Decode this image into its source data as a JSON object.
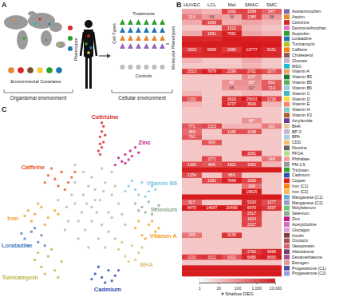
{
  "panel_a": {
    "letter": "A",
    "environmental_covariates": "Environmental Covariates",
    "phenotypes": "Phenotypes",
    "organismal_environment": "Organismal environment",
    "cellular_environment": "Cellular environment",
    "cell_types": "Cell Types",
    "treatments": "Treatments",
    "controls": "Controls",
    "molecular_phenotypes": "Molecular Phenotypes"
  },
  "chart_data": [
    {
      "type": "heatmap",
      "title": "B",
      "columns": [
        "HUVEC",
        "LCL",
        "Mel",
        "SMAC",
        "SMC"
      ],
      "rows": [
        "Acetaminophen",
        "Aspirin",
        "Cetirizine",
        "Dextromethorphan",
        "Ibuprofen",
        "Loratadine",
        "Tunicamycin",
        "Caffeine",
        "Cholesterol",
        "Glucose",
        "MSG",
        "Vitamin A",
        "Vitamin B3",
        "Vitamin B5",
        "Vitamin B6",
        "Vitamin C",
        "Vitamin D",
        "Vitamin E",
        "Vitamin H",
        "Vitamin K3",
        "Acrylamide",
        "BHA",
        "BP-3",
        "BPA",
        "CDD",
        "Nicotine",
        "PFOA",
        "Phthalate",
        "PM 2.5",
        "Triclosan",
        "Cadmium",
        "Copper",
        "Iron (C1)",
        "Iron (C2)",
        "Manganese (C1)",
        "Manganese (C2)",
        "Molybdenum",
        "Selenium",
        "Zinc",
        "Acetylcholine",
        "Glucagon",
        "Insulin",
        "Oxytocin",
        "Vasopressin",
        "Aldosterone",
        "Dexamethasone",
        "Estrogen",
        "Progesterone (C1)",
        "Progesterone (C2)"
      ],
      "colors": [
        "#7b68ae",
        "#e6872d",
        "#d62728",
        "#e377c2",
        "#2ca02c",
        "#1f77b4",
        "#bcbd22",
        "#ff7f0e",
        "#8c564b",
        "#c5b0d5",
        "#17becf",
        "#f4a259",
        "#1b7837",
        "#5aae61",
        "#9ecae1",
        "#41b6c4",
        "#fdd835",
        "#fb8072",
        "#80cdc1",
        "#b15928",
        "#6a3d9a",
        "#e7cb94",
        "#cab2d6",
        "#a6cee3",
        "#fdbf6f",
        "#666666",
        "#b2df8a",
        "#fb9a99",
        "#999999",
        "#33a02c",
        "#3050b0",
        "#e31a1c",
        "#ff7f00",
        "#ffb84d",
        "#6baed6",
        "#9e9ac8",
        "#74c476",
        "#8fae8f",
        "#c71585",
        "#ce6dbd",
        "#de9ed6",
        "#843c39",
        "#ad494a",
        "#d6616b",
        "#7b4173",
        "#a55194",
        "#e7969c",
        "#5254a3",
        "#9c9ede"
      ],
      "values": [
        [
          40,
          20,
          1692,
          1569,
          547
        ],
        [
          214,
          54,
          36,
          1385,
          58
        ],
        [
          30,
          1669,
          25,
          40,
          20
        ],
        [
          10,
          10,
          1312,
          20,
          10
        ],
        [
          30,
          1891,
          7561,
          40,
          20
        ],
        [
          6000,
          5000,
          9000,
          8000,
          7000
        ],
        [
          9000,
          9000,
          9000,
          12000,
          9000
        ],
        [
          2623,
          6909,
          2683,
          13777,
          5151
        ],
        [
          5000,
          6000,
          7000,
          9000,
          6000
        ],
        [
          20,
          10,
          10,
          30,
          10
        ],
        [
          10,
          10,
          10,
          20,
          10
        ],
        [
          2513,
          7679,
          2299,
          2701,
          1077
        ],
        [
          10,
          10,
          10,
          113,
          10
        ],
        [
          10,
          10,
          85,
          83,
          632
        ],
        [
          10,
          10,
          65,
          61,
          714
        ],
        [
          20,
          10,
          10,
          20,
          10
        ],
        [
          1332,
          10,
          3616,
          25693,
          1726
        ],
        [
          20,
          10,
          4737,
          3643,
          20
        ],
        [
          10,
          10,
          10,
          10,
          10
        ],
        [
          10,
          10,
          10,
          10,
          10
        ],
        [
          10,
          10,
          10,
          86,
          10
        ],
        [
          771,
          1515,
          20,
          20,
          192
        ],
        [
          369,
          10,
          1165,
          1038,
          10
        ],
        [
          792,
          10,
          10,
          10,
          10
        ],
        [
          10,
          909,
          10,
          10,
          10
        ],
        [
          10,
          10,
          10,
          10,
          10
        ],
        [
          10,
          10,
          10,
          3261,
          10
        ],
        [
          10,
          1571,
          10,
          10,
          248
        ],
        [
          1350,
          846,
          1901,
          1952,
          20
        ],
        [
          8000,
          9000,
          9000,
          9000,
          9000
        ],
        [
          1254,
          10,
          869,
          10,
          10
        ],
        [
          10,
          1582,
          7669,
          1926,
          10
        ],
        [
          10,
          10,
          10,
          268,
          10
        ],
        [
          10,
          10,
          10,
          16825,
          10
        ],
        [
          9000,
          9000,
          9000,
          9000,
          9000
        ],
        [
          617,
          10,
          10,
          5200,
          1277
        ],
        [
          8470,
          14687,
          20469,
          6470,
          3057
        ],
        [
          10,
          10,
          10,
          2517,
          10
        ],
        [
          10,
          10,
          10,
          1604,
          10
        ],
        [
          10,
          10,
          10,
          2027,
          10
        ],
        [
          10,
          10,
          10,
          10,
          10
        ],
        [
          249,
          10,
          3130,
          10,
          10
        ],
        [
          10,
          10,
          10,
          10,
          10
        ],
        [
          10,
          10,
          10,
          10,
          10
        ],
        [
          10,
          10,
          10,
          2762,
          6689
        ],
        [
          2231,
          3111,
          1002,
          6480,
          8660
        ],
        [
          10,
          10,
          10,
          10,
          10
        ],
        [
          9000,
          9000,
          9000,
          9000,
          9000
        ],
        [
          9000,
          9000,
          9000,
          9000,
          9000
        ]
      ],
      "value_labels": [
        [
          null,
          null,
          "1692",
          "1569",
          "547"
        ],
        [
          "214",
          "54",
          "36",
          "1385",
          "58"
        ],
        [
          null,
          "1669",
          null,
          null,
          null
        ],
        [
          null,
          null,
          "1312",
          null,
          null
        ],
        [
          null,
          "1891",
          "7561",
          null,
          null
        ],
        [
          null,
          null,
          null,
          null,
          null
        ],
        [
          null,
          null,
          null,
          null,
          null
        ],
        [
          "2623",
          "6909",
          "2683",
          "13777",
          "5151"
        ],
        [
          null,
          null,
          null,
          null,
          null
        ],
        [
          null,
          null,
          null,
          null,
          null
        ],
        [
          null,
          null,
          null,
          null,
          null
        ],
        [
          "2513",
          "7679",
          "2299",
          "2701",
          "1077"
        ],
        [
          null,
          null,
          null,
          "113*",
          null
        ],
        [
          null,
          null,
          "85",
          "83*",
          "632"
        ],
        [
          null,
          null,
          "65",
          "61*",
          "714"
        ],
        [
          null,
          null,
          null,
          null,
          null
        ],
        [
          "1332",
          null,
          "3616",
          "25693",
          "1726"
        ],
        [
          null,
          null,
          "4737",
          "3643",
          null
        ],
        [
          null,
          null,
          null,
          null,
          null
        ],
        [
          null,
          null,
          null,
          null,
          null
        ],
        [
          null,
          null,
          null,
          "86*",
          null
        ],
        [
          "771",
          "1515",
          null,
          null,
          "192"
        ],
        [
          "369",
          null,
          "1165",
          "1038",
          null
        ],
        [
          "792",
          null,
          null,
          null,
          null
        ],
        [
          null,
          "909",
          null,
          null,
          null
        ],
        [
          null,
          null,
          null,
          null,
          null
        ],
        [
          null,
          null,
          null,
          "3261",
          null
        ],
        [
          null,
          "1571",
          null,
          null,
          "248"
        ],
        [
          "1350",
          "846",
          "1901",
          "1952",
          null
        ],
        [
          null,
          null,
          null,
          null,
          null
        ],
        [
          "1254",
          null,
          "869",
          null,
          null
        ],
        [
          null,
          "1582",
          "7669",
          "1926",
          null
        ],
        [
          null,
          null,
          null,
          "268",
          null
        ],
        [
          null,
          null,
          null,
          "16825",
          null
        ],
        [
          null,
          null,
          null,
          null,
          null
        ],
        [
          "617",
          null,
          null,
          "5200",
          "1277"
        ],
        [
          "8470",
          "14687",
          "20469",
          "6470",
          "3057"
        ],
        [
          null,
          null,
          null,
          "2517",
          null
        ],
        [
          null,
          null,
          null,
          "1604",
          null
        ],
        [
          null,
          null,
          null,
          "2027",
          null
        ],
        [
          null,
          null,
          null,
          null,
          null
        ],
        [
          "249",
          null,
          "3130",
          null,
          null
        ],
        [
          null,
          null,
          null,
          null,
          null
        ],
        [
          null,
          null,
          null,
          null,
          null
        ],
        [
          null,
          null,
          null,
          "2762",
          "6689"
        ],
        [
          "2231",
          "3111",
          "1002",
          "6480",
          "8660"
        ],
        [
          null,
          null,
          null,
          null,
          null
        ],
        [
          null,
          null,
          null,
          null,
          null
        ],
        [
          null,
          null,
          null,
          null,
          null
        ]
      ],
      "data_labels": true,
      "colorbar": {
        "label": "# Shallow DEG",
        "log": true,
        "range": [
          1,
          10000
        ],
        "ticks": [
          1,
          10,
          100,
          {
            "value": 1000,
            "label": "1,000"
          },
          {
            "value": 10000,
            "label": "10,000"
          }
        ]
      }
    },
    {
      "type": "scatter",
      "title": "C",
      "xlim": [
        0,
        100
      ],
      "ylim": [
        0,
        100
      ],
      "tick_labels": false,
      "series": [
        {
          "color": "#b5b5b5",
          "x": [
            40,
            45,
            50,
            55,
            60,
            42,
            48,
            52,
            58,
            62,
            38,
            44,
            50,
            56,
            62,
            66,
            35,
            40,
            46,
            54,
            60,
            64,
            68,
            36,
            42,
            48,
            58,
            64,
            70,
            30,
            34,
            50,
            45,
            56,
            62,
            40,
            52,
            47,
            53,
            57
          ],
          "y": [
            50,
            55,
            48,
            52,
            45,
            40,
            60,
            58,
            62,
            55,
            55,
            45,
            40,
            38,
            42,
            50,
            48,
            62,
            35,
            30,
            34,
            60,
            44,
            40,
            30,
            25,
            25,
            30,
            38,
            52,
            35,
            65,
            68,
            70,
            68,
            72,
            52,
            50,
            45,
            57
          ]
        },
        {
          "name": "Cetirizine",
          "color": "#d62728",
          "x": [
            55,
            56,
            57,
            55,
            56,
            57,
            56,
            54,
            58,
            55
          ],
          "y": [
            78,
            82,
            85,
            88,
            91,
            94,
            96,
            80,
            89,
            84
          ]
        },
        {
          "name": "Zinc",
          "color": "#c71585",
          "x": [
            66,
            70,
            73,
            76,
            68,
            72,
            78,
            64,
            74,
            70
          ],
          "y": [
            76,
            78,
            80,
            82,
            74,
            75,
            79,
            72,
            77,
            73
          ]
        },
        {
          "name": "Caffeine",
          "color": "#e8552a",
          "x": [
            24,
            28,
            32,
            36,
            30,
            26,
            38,
            34,
            22,
            40
          ],
          "y": [
            66,
            64,
            68,
            62,
            60,
            70,
            65,
            58,
            62,
            68
          ]
        },
        {
          "name": "Iron",
          "color": "#f0a030",
          "x": [
            12,
            16,
            20,
            24,
            14,
            28,
            18,
            22,
            30,
            10
          ],
          "y": [
            46,
            44,
            48,
            42,
            40,
            46,
            50,
            38,
            44,
            43
          ]
        },
        {
          "name": "Vitamin B6",
          "color": "#7ec8e3",
          "x": [
            72,
            76,
            80,
            84,
            78,
            86,
            74,
            82,
            88,
            70
          ],
          "y": [
            60,
            58,
            62,
            57,
            55,
            60,
            63,
            54,
            58,
            57
          ]
        },
        {
          "name": "Selenium",
          "color": "#8fae8f",
          "x": [
            76,
            80,
            84,
            88,
            82,
            78,
            86,
            90
          ],
          "y": [
            50,
            48,
            51,
            47,
            45,
            46,
            44,
            49
          ]
        },
        {
          "name": "Vitamin A",
          "color": "#f5a623",
          "x": [
            76,
            80,
            84,
            88,
            82,
            86,
            78,
            90
          ],
          "y": [
            36,
            32,
            38,
            34,
            30,
            40,
            40,
            36
          ]
        },
        {
          "name": "BHA",
          "color": "#d9c27a",
          "x": [
            66,
            70,
            74,
            78,
            72,
            68,
            76,
            80
          ],
          "y": [
            24,
            20,
            26,
            22,
            17,
            28,
            18,
            25
          ]
        },
        {
          "name": "Cadmium",
          "color": "#3050b0",
          "x": [
            52,
            56,
            60,
            64,
            58,
            54,
            62,
            66,
            50
          ],
          "y": [
            10,
            8,
            12,
            9,
            5,
            14,
            6,
            12,
            7
          ]
        },
        {
          "name": "Tunicamycin",
          "color": "#bdb63a",
          "x": [
            16,
            20,
            24,
            28,
            22,
            32,
            18,
            26,
            30
          ],
          "y": [
            18,
            14,
            20,
            12,
            10,
            17,
            22,
            24,
            8
          ]
        },
        {
          "name": "Loratadine",
          "color": "#4a7fc1",
          "x": [
            10,
            14,
            18,
            12,
            20,
            16,
            22,
            8
          ],
          "y": [
            30,
            34,
            28,
            26,
            32,
            36,
            26,
            33
          ]
        }
      ]
    }
  ]
}
